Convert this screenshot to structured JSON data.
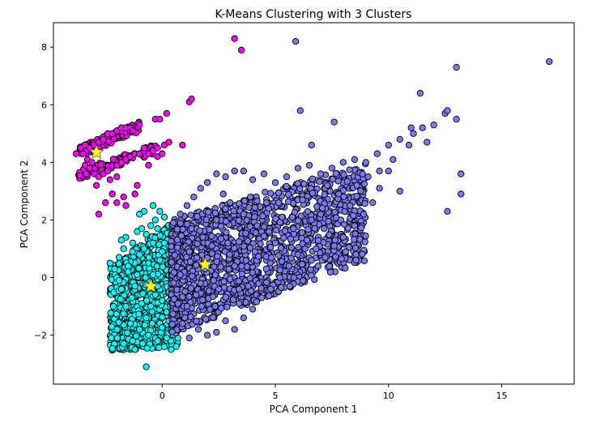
{
  "chart_data": {
    "type": "scatter",
    "title": "K-Means Clustering with 3 Clusters",
    "xlabel": "PCA Component 1",
    "ylabel": "PCA Component 2",
    "xlim": [
      -4.8,
      18.2
    ],
    "ylim": [
      -3.7,
      8.85
    ],
    "x_ticks": [
      0,
      5,
      10,
      15
    ],
    "y_ticks": [
      -2,
      0,
      2,
      4,
      6,
      8
    ],
    "grid": false,
    "legend": "none",
    "point_outline_color": "#000000",
    "series": [
      {
        "color": "#00ffff",
        "points": [
          [
            -2.3,
            0.5
          ],
          [
            -2.1,
            0.3
          ],
          [
            -1.9,
            0.7
          ],
          [
            -1.7,
            1.0
          ],
          [
            -1.5,
            0.4
          ],
          [
            -1.3,
            1.2
          ],
          [
            -1.1,
            1.6
          ],
          [
            -0.9,
            1.7
          ],
          [
            -0.7,
            1.5
          ],
          [
            -0.5,
            1.8
          ],
          [
            -0.3,
            2.0
          ],
          [
            -0.2,
            1.7
          ],
          [
            0.1,
            2.1
          ],
          [
            -0.1,
            2.3
          ],
          [
            -0.4,
            2.5
          ],
          [
            -0.8,
            2.3
          ],
          [
            -1.0,
            2.2
          ],
          [
            -1.6,
            1.4
          ],
          [
            -1.8,
            1.3
          ],
          [
            -1.0,
            0.8
          ],
          [
            -0.6,
            0.5
          ],
          [
            -0.4,
            0.1
          ],
          [
            -0.2,
            -0.3
          ],
          [
            0.0,
            -0.8
          ],
          [
            0.2,
            -1.2
          ],
          [
            0.4,
            -1.8
          ],
          [
            0.2,
            -2.1
          ],
          [
            0.1,
            -2.4
          ],
          [
            -0.2,
            -2.2
          ],
          [
            -0.6,
            -2.0
          ],
          [
            -1.0,
            -1.8
          ],
          [
            -1.3,
            -2.2
          ],
          [
            -1.4,
            -1.6
          ],
          [
            -1.6,
            -1.0
          ],
          [
            -1.8,
            -0.4
          ],
          [
            -2.0,
            0.0
          ],
          [
            -1.2,
            -0.3
          ],
          [
            -0.9,
            -0.9
          ],
          [
            -0.7,
            -1.4
          ],
          [
            -0.5,
            -1.0
          ],
          [
            -0.3,
            -0.6
          ],
          [
            -0.1,
            0.6
          ],
          [
            0.1,
            1.2
          ],
          [
            0.3,
            0.8
          ],
          [
            0.4,
            0.2
          ],
          [
            0.5,
            -0.5
          ],
          [
            0.6,
            -1.3
          ],
          [
            0.7,
            -2.1
          ],
          [
            0.4,
            -2.5
          ],
          [
            -1.7,
            -2.3
          ],
          [
            -1.2,
            -2.5
          ],
          [
            -0.7,
            -3.1
          ],
          [
            -1.1,
            0.1
          ],
          [
            -1.5,
            0.2
          ],
          [
            -0.4,
            1.2
          ],
          [
            0.0,
            0.9
          ],
          [
            -0.8,
            1.0
          ],
          [
            -1.9,
            -0.1
          ],
          [
            0.6,
            0.4
          ],
          [
            0.3,
            -1.5
          ]
        ],
        "center": [
          -0.5,
          -0.3
        ]
      },
      {
        "color": "#7b7bf0",
        "points": [
          [
            0.5,
            1.9
          ],
          [
            0.8,
            2.2
          ],
          [
            1.1,
            2.5
          ],
          [
            1.4,
            2.8
          ],
          [
            1.7,
            3.1
          ],
          [
            2.0,
            3.3
          ],
          [
            2.4,
            3.6
          ],
          [
            2.8,
            3.5
          ],
          [
            3.2,
            3.7
          ],
          [
            3.6,
            3.7
          ],
          [
            4.0,
            3.4
          ],
          [
            4.5,
            3.6
          ],
          [
            5.0,
            3.3
          ],
          [
            5.5,
            3.5
          ],
          [
            6.0,
            3.8
          ],
          [
            6.5,
            3.9
          ],
          [
            7.0,
            3.6
          ],
          [
            7.5,
            3.8
          ],
          [
            8.0,
            4.0
          ],
          [
            8.5,
            4.1
          ],
          [
            9.0,
            4.0
          ],
          [
            9.5,
            4.3
          ],
          [
            10.0,
            4.6
          ],
          [
            10.5,
            4.8
          ],
          [
            11.0,
            5.2
          ],
          [
            11.5,
            5.2
          ],
          [
            12.0,
            5.3
          ],
          [
            12.5,
            5.7
          ],
          [
            13.0,
            5.5
          ],
          [
            13.2,
            3.6
          ],
          [
            13.2,
            2.9
          ],
          [
            12.6,
            2.3
          ],
          [
            11.7,
            4.7
          ],
          [
            10.9,
            4.6
          ],
          [
            10.5,
            3.0
          ],
          [
            10.0,
            3.7
          ],
          [
            9.6,
            3.1
          ],
          [
            9.3,
            2.6
          ],
          [
            8.9,
            2.2
          ],
          [
            8.5,
            1.8
          ],
          [
            8.0,
            1.4
          ],
          [
            7.6,
            1.1
          ],
          [
            7.2,
            0.7
          ],
          [
            6.8,
            1.0
          ],
          [
            6.4,
            1.3
          ],
          [
            6.0,
            0.8
          ],
          [
            5.6,
            0.4
          ],
          [
            5.2,
            0.0
          ],
          [
            4.8,
            -0.4
          ],
          [
            4.4,
            -0.7
          ],
          [
            4.0,
            -1.1
          ],
          [
            3.6,
            -1.4
          ],
          [
            3.2,
            -1.8
          ],
          [
            2.8,
            -1.5
          ],
          [
            2.4,
            -1.9
          ],
          [
            2.0,
            -2.0
          ],
          [
            1.6,
            -1.8
          ],
          [
            1.2,
            -2.1
          ],
          [
            0.9,
            -1.6
          ],
          [
            0.7,
            -0.9
          ],
          [
            0.8,
            0.1
          ],
          [
            1.2,
            0.9
          ],
          [
            1.8,
            1.4
          ],
          [
            2.4,
            2.0
          ],
          [
            3.0,
            2.6
          ],
          [
            3.6,
            2.2
          ],
          [
            4.2,
            1.8
          ],
          [
            4.7,
            2.4
          ],
          [
            5.3,
            2.1
          ],
          [
            6.2,
            2.7
          ],
          [
            7.0,
            2.2
          ],
          [
            7.8,
            2.9
          ],
          [
            8.6,
            3.2
          ],
          [
            9.1,
            3.5
          ],
          [
            10.2,
            4.1
          ],
          [
            11.1,
            5.0
          ],
          [
            11.4,
            6.4
          ],
          [
            12.6,
            5.8
          ],
          [
            13.0,
            7.3
          ],
          [
            17.1,
            7.5
          ],
          [
            5.9,
            8.2
          ],
          [
            6.1,
            5.8
          ],
          [
            7.6,
            5.4
          ],
          [
            6.6,
            4.6
          ],
          [
            9.6,
            3.7
          ],
          [
            2.5,
            -0.4
          ],
          [
            1.9,
            0.3
          ],
          [
            1.5,
            -0.6
          ],
          [
            3.2,
            0.4
          ],
          [
            4.1,
            0.9
          ],
          [
            5.0,
            1.2
          ],
          [
            3.8,
            -0.3
          ],
          [
            2.2,
            1.1
          ],
          [
            1.3,
            1.7
          ],
          [
            2.9,
            1.2
          ],
          [
            1.1,
            -1.0
          ],
          [
            1.7,
            -0.2
          ],
          [
            3.4,
            -0.9
          ],
          [
            4.6,
            0.3
          ],
          [
            5.8,
            1.7
          ],
          [
            6.6,
            2.0
          ],
          [
            7.3,
            3.2
          ],
          [
            8.3,
            2.5
          ],
          [
            2.7,
            2.9
          ],
          [
            3.9,
            2.8
          ]
        ],
        "center": [
          1.9,
          0.45
        ]
      },
      {
        "color": "#ff00ff",
        "points": [
          [
            -3.8,
            4.3
          ],
          [
            -3.6,
            4.5
          ],
          [
            -3.4,
            4.6
          ],
          [
            -3.2,
            4.5
          ],
          [
            -3.0,
            4.6
          ],
          [
            -2.8,
            4.7
          ],
          [
            -2.6,
            4.8
          ],
          [
            -2.4,
            5.0
          ],
          [
            -2.2,
            5.0
          ],
          [
            -2.0,
            5.1
          ],
          [
            -1.8,
            5.2
          ],
          [
            -1.6,
            5.2
          ],
          [
            -1.4,
            5.2
          ],
          [
            -1.3,
            5.1
          ],
          [
            -3.3,
            4.1
          ],
          [
            -3.4,
            3.9
          ],
          [
            -3.2,
            3.8
          ],
          [
            -3.0,
            3.6
          ],
          [
            -2.8,
            3.5
          ],
          [
            -2.6,
            3.6
          ],
          [
            -2.4,
            3.7
          ],
          [
            -2.2,
            3.9
          ],
          [
            -2.0,
            3.9
          ],
          [
            -1.8,
            4.0
          ],
          [
            -1.6,
            4.1
          ],
          [
            -1.4,
            4.2
          ],
          [
            -1.2,
            4.3
          ],
          [
            -1.0,
            4.3
          ],
          [
            -0.8,
            4.4
          ],
          [
            -0.6,
            4.3
          ],
          [
            -0.4,
            4.4
          ],
          [
            -0.2,
            4.5
          ],
          [
            0.1,
            4.6
          ],
          [
            0.3,
            4.7
          ],
          [
            0.9,
            4.6
          ],
          [
            -0.3,
            5.5
          ],
          [
            -0.1,
            5.5
          ],
          [
            0.2,
            5.7
          ],
          [
            -2.0,
            3.5
          ],
          [
            -2.3,
            3.4
          ],
          [
            -2.9,
            3.2
          ],
          [
            -2.2,
            2.9
          ],
          [
            -1.7,
            2.8
          ],
          [
            -1.2,
            2.9
          ],
          [
            -1.1,
            3.2
          ],
          [
            -2.5,
            2.6
          ],
          [
            -2.0,
            2.6
          ],
          [
            -1.6,
            2.5
          ],
          [
            -2.8,
            2.2
          ],
          [
            1.2,
            6.1
          ],
          [
            1.3,
            6.2
          ],
          [
            3.2,
            8.3
          ],
          [
            3.5,
            7.9
          ],
          [
            -0.2,
            4.2
          ],
          [
            0.0,
            4.3
          ],
          [
            -0.6,
            3.9
          ],
          [
            -0.8,
            4.5
          ],
          [
            -1.0,
            5.3
          ],
          [
            -3.5,
            4.3
          ],
          [
            -3.1,
            4.0
          ]
        ],
        "center": [
          -2.9,
          4.35
        ]
      }
    ],
    "centroid_marker_color": "#ffff00"
  }
}
